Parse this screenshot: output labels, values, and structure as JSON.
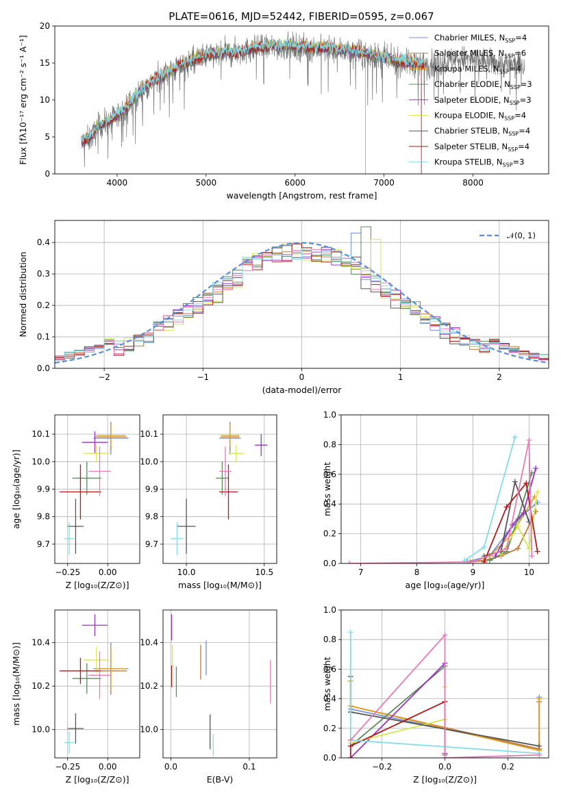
{
  "figure": {
    "title": "PLATE=0616, MJD=52442, FIBERID=0595, z=0.067"
  },
  "legend": {
    "models": [
      {
        "name": "Chabrier MILES",
        "nssp": "4",
        "color": "#6e8fd0"
      },
      {
        "name": "Salpeter MILES",
        "nssp": "6",
        "color": "#c4783a"
      },
      {
        "name": "Kroupa MILES",
        "nssp": "4",
        "color": "#e0a020"
      },
      {
        "name": "Chabrier ELODIE",
        "nssp": "3",
        "color": "#5b8a5b"
      },
      {
        "name": "Salpeter ELODIE",
        "nssp": "3",
        "color": "#9b30c0"
      },
      {
        "name": "Kroupa ELODIE",
        "nssp": "4",
        "color": "#d8e84a"
      },
      {
        "name": "Chabrier STELIB",
        "nssp": "4",
        "color": "#555555"
      },
      {
        "name": "Salpeter STELIB",
        "nssp": "4",
        "color": "#b01818"
      },
      {
        "name": "Kroupa STELIB",
        "nssp": "3",
        "color": "#80dde8"
      }
    ],
    "extra_colors": [
      "#e87ab8"
    ],
    "nssp_prefix": "N",
    "nssp_sub": "SSP"
  },
  "chart_data": [
    {
      "id": "spectrum",
      "type": "line",
      "xlabel": "wavelength [Angstrom, rest frame]",
      "ylabel": "Flux [fλ10⁻¹⁷ erg cm⁻² s⁻¹ A⁻¹]",
      "xlim": [
        3300,
        8850
      ],
      "ylim": [
        0,
        20
      ],
      "xticks": [
        4000,
        5000,
        6000,
        7000,
        8000
      ],
      "yticks": [
        0,
        5,
        10,
        15,
        20
      ],
      "continuum": {
        "x": [
          3600,
          3700,
          3800,
          3900,
          4000,
          4100,
          4200,
          4300,
          4400,
          4500,
          4600,
          4800,
          5000,
          5200,
          5400,
          5600,
          5800,
          6000,
          6200,
          6400,
          6600,
          6800,
          7000,
          7200,
          7400,
          7600,
          7800,
          8000,
          8200,
          8400
        ],
        "y": [
          4.2,
          4.8,
          6.5,
          7.0,
          7.8,
          8.8,
          10.3,
          11.5,
          12.5,
          13.2,
          13.8,
          15.0,
          16.0,
          16.3,
          16.5,
          17.0,
          17.2,
          17.2,
          17.0,
          16.8,
          16.6,
          16.2,
          15.5,
          15.1,
          14.8,
          14.8,
          15.5,
          15.5,
          15.1,
          14.7
        ]
      },
      "data_range": [
        3600,
        8580
      ],
      "model_range": [
        3600,
        7450
      ],
      "dropouts": [
        {
          "x": 6790,
          "model": "Salpeter MILES"
        },
        {
          "x": 7420,
          "model": "Salpeter STELIB"
        }
      ]
    },
    {
      "id": "residuals",
      "type": "histogram",
      "xlabel": "(data-model)/error",
      "ylabel": "Normed distribution",
      "xlim": [
        -2.5,
        2.5
      ],
      "ylim": [
        0,
        0.47
      ],
      "xticks": [
        -2,
        -1,
        0,
        1,
        2
      ],
      "yticks": [
        0.0,
        0.1,
        0.2,
        0.3,
        0.4
      ],
      "bin_width": 0.1,
      "reference_label": "𝒩(0, 1)",
      "reference_color": "#5b8ad8",
      "peak_values": {
        "Chabrier ELODIE": 0.45,
        "Chabrier MILES": 0.43,
        "Kroupa ELODIE": 0.41
      }
    },
    {
      "id": "age-vs-Z",
      "type": "errorbar",
      "xlabel": "Z [log₁₀(Z/Z⊙)]",
      "ylabel": "age  [log₁₀(age/yr)]",
      "xlim": [
        -0.33,
        0.2
      ],
      "ylim": [
        9.63,
        10.17
      ],
      "xticks": [
        -0.25,
        0.0
      ],
      "yticks": [
        9.7,
        9.8,
        9.9,
        10.0,
        10.1
      ],
      "points": [
        {
          "x": 0.02,
          "y": 10.085,
          "xerr": 0.11,
          "yerr": 0.06,
          "c": 0
        },
        {
          "x": 0.02,
          "y": 10.09,
          "xerr": 0.1,
          "yerr": 0.05,
          "c": 1
        },
        {
          "x": 0.02,
          "y": 10.095,
          "xerr": 0.09,
          "yerr": 0.04,
          "c": 2
        },
        {
          "x": -0.13,
          "y": 9.94,
          "xerr": 0.09,
          "yerr": 0.06,
          "c": 3
        },
        {
          "x": -0.08,
          "y": 10.07,
          "xerr": 0.08,
          "yerr": 0.04,
          "c": 4
        },
        {
          "x": -0.07,
          "y": 10.03,
          "xerr": 0.08,
          "yerr": 0.03,
          "c": 5
        },
        {
          "x": -0.2,
          "y": 9.765,
          "xerr": 0.05,
          "yerr": 0.1,
          "c": 6
        },
        {
          "x": -0.17,
          "y": 9.89,
          "xerr": 0.13,
          "yerr": 0.1,
          "c": 7
        },
        {
          "x": -0.24,
          "y": 9.72,
          "xerr": 0.03,
          "yerr": 0.06,
          "c": 8
        },
        {
          "x": -0.05,
          "y": 9.965,
          "xerr": 0.07,
          "yerr": 0.09,
          "c": 9
        }
      ]
    },
    {
      "id": "age-vs-mass",
      "type": "errorbar",
      "xlabel": "mass [log₁₀(M/M⊙)]",
      "ylabel": "",
      "xlim": [
        9.85,
        10.58
      ],
      "ylim": [
        9.63,
        10.17
      ],
      "xticks": [
        10.0,
        10.5
      ],
      "yticks": [
        9.7,
        9.8,
        9.9,
        10.0,
        10.1
      ],
      "points": [
        {
          "x": 10.28,
          "y": 10.085,
          "xerr": 0.07,
          "yerr": 0.06,
          "c": 0
        },
        {
          "x": 10.28,
          "y": 10.09,
          "xerr": 0.06,
          "yerr": 0.05,
          "c": 1
        },
        {
          "x": 10.28,
          "y": 10.095,
          "xerr": 0.06,
          "yerr": 0.04,
          "c": 2
        },
        {
          "x": 10.23,
          "y": 9.94,
          "xerr": 0.04,
          "yerr": 0.06,
          "c": 3
        },
        {
          "x": 10.48,
          "y": 10.06,
          "xerr": 0.04,
          "yerr": 0.04,
          "c": 4
        },
        {
          "x": 10.32,
          "y": 10.03,
          "xerr": 0.05,
          "yerr": 0.03,
          "c": 5
        },
        {
          "x": 10.0,
          "y": 9.765,
          "xerr": 0.06,
          "yerr": 0.1,
          "c": 6
        },
        {
          "x": 10.27,
          "y": 9.89,
          "xerr": 0.06,
          "yerr": 0.1,
          "c": 7
        },
        {
          "x": 9.94,
          "y": 9.72,
          "xerr": 0.04,
          "yerr": 0.06,
          "c": 8
        },
        {
          "x": 10.25,
          "y": 9.965,
          "xerr": 0.04,
          "yerr": 0.09,
          "c": 9
        }
      ]
    },
    {
      "id": "massweight-vs-age",
      "type": "line",
      "xlabel": "age  [log₁₀(age/yr)]",
      "ylabel": "mass weight",
      "xlim": [
        6.65,
        10.35
      ],
      "ylim": [
        0,
        1
      ],
      "xticks": [
        7,
        8,
        9,
        10
      ],
      "yticks": [
        0.0,
        0.2,
        0.4,
        0.6,
        0.8,
        1.0
      ],
      "series": [
        {
          "c": 0,
          "x": [
            8.9,
            9.3,
            9.6,
            9.9,
            10.15
          ],
          "y": [
            0.01,
            0.05,
            0.2,
            0.33,
            0.41
          ]
        },
        {
          "c": 1,
          "x": [
            8.95,
            9.2,
            9.5,
            9.8,
            10.12
          ],
          "y": [
            0.01,
            0.02,
            0.05,
            0.1,
            0.35
          ]
        },
        {
          "c": 2,
          "x": [
            9.0,
            9.3,
            9.7,
            10.1
          ],
          "y": [
            0.01,
            0.05,
            0.2,
            0.45
          ]
        },
        {
          "c": 3,
          "x": [
            9.3,
            9.6,
            9.8,
            10.05
          ],
          "y": [
            0.02,
            0.08,
            0.3,
            0.61
          ]
        },
        {
          "c": 4,
          "x": [
            9.4,
            9.7,
            9.9,
            10.12
          ],
          "y": [
            0.05,
            0.26,
            0.34,
            0.64
          ]
        },
        {
          "c": 5,
          "x": [
            9.5,
            9.8,
            10.0,
            10.15
          ],
          "y": [
            0.06,
            0.25,
            0.1,
            0.48
          ]
        },
        {
          "c": 6,
          "x": [
            9.2,
            9.5,
            9.75,
            10.0
          ],
          "y": [
            0.05,
            0.08,
            0.55,
            0.28
          ]
        },
        {
          "c": 7,
          "x": [
            9.2,
            9.6,
            9.95,
            10.15
          ],
          "y": [
            0.01,
            0.38,
            0.54,
            0.08
          ]
        },
        {
          "c": 8,
          "x": [
            8.85,
            9.2,
            9.75
          ],
          "y": [
            0.02,
            0.11,
            0.85
          ]
        },
        {
          "c": 9,
          "x": [
            6.8,
            9.0,
            9.6,
            10.0,
            10.05
          ],
          "y": [
            0.0,
            0.01,
            0.1,
            0.83,
            0.05
          ]
        }
      ]
    },
    {
      "id": "mass-vs-Z",
      "type": "errorbar",
      "xlabel": "Z [log₁₀(Z/Z⊙)]",
      "ylabel": "mass [log₁₀(M/M⊙)]",
      "xlim": [
        -0.33,
        0.2
      ],
      "ylim": [
        9.87,
        10.55
      ],
      "xticks": [
        -0.25,
        0.0
      ],
      "yticks": [
        10.0,
        10.2,
        10.4
      ],
      "points": [
        {
          "x": 0.02,
          "y": 10.28,
          "xerr": 0.11,
          "yerr": 0.12,
          "c": 0
        },
        {
          "x": 0.02,
          "y": 10.27,
          "xerr": 0.1,
          "yerr": 0.1,
          "c": 1
        },
        {
          "x": 0.02,
          "y": 10.28,
          "xerr": 0.09,
          "yerr": 0.1,
          "c": 2
        },
        {
          "x": -0.13,
          "y": 10.235,
          "xerr": 0.09,
          "yerr": 0.07,
          "c": 3
        },
        {
          "x": -0.08,
          "y": 10.48,
          "xerr": 0.08,
          "yerr": 0.05,
          "c": 4
        },
        {
          "x": -0.07,
          "y": 10.32,
          "xerr": 0.08,
          "yerr": 0.06,
          "c": 5
        },
        {
          "x": -0.2,
          "y": 10.005,
          "xerr": 0.05,
          "yerr": 0.07,
          "c": 6
        },
        {
          "x": -0.17,
          "y": 10.27,
          "xerr": 0.13,
          "yerr": 0.06,
          "c": 7
        },
        {
          "x": -0.24,
          "y": 9.94,
          "xerr": 0.03,
          "yerr": 0.05,
          "c": 8
        },
        {
          "x": -0.05,
          "y": 10.25,
          "xerr": 0.07,
          "yerr": 0.11,
          "c": 9
        }
      ]
    },
    {
      "id": "mass-vs-ebv",
      "type": "errorbar",
      "xlabel": "E(B-V)",
      "ylabel": "",
      "xlim": [
        -0.01,
        0.135
      ],
      "ylim": [
        9.87,
        10.55
      ],
      "xticks": [
        0.0,
        0.1
      ],
      "yticks": [
        10.0,
        10.2,
        10.4
      ],
      "points": [
        {
          "x": 0.045,
          "y": 10.33,
          "xerr": 0,
          "yerr": 0.08,
          "c": 0
        },
        {
          "x": 0.038,
          "y": 10.31,
          "xerr": 0,
          "yerr": 0.08,
          "c": 1
        },
        {
          "x": 0.001,
          "y": 10.47,
          "xerr": 0,
          "yerr": 0.06,
          "c": 4
        },
        {
          "x": 0.002,
          "y": 10.34,
          "xerr": 0,
          "yerr": 0.05,
          "c": 5
        },
        {
          "x": 0.007,
          "y": 10.22,
          "xerr": 0,
          "yerr": 0.07,
          "c": 3
        },
        {
          "x": 0.05,
          "y": 9.99,
          "xerr": 0,
          "yerr": 0.08,
          "c": 6
        },
        {
          "x": 0.001,
          "y": 10.245,
          "xerr": 0,
          "yerr": 0.05,
          "c": 7
        },
        {
          "x": 0.054,
          "y": 9.93,
          "xerr": 0,
          "yerr": 0.05,
          "c": 8
        },
        {
          "x": 0.127,
          "y": 10.22,
          "xerr": 0,
          "yerr": 0.1,
          "c": 9
        }
      ]
    },
    {
      "id": "massweight-vs-Z",
      "type": "line",
      "xlabel": "Z [log₁₀(Z/Z⊙)]",
      "ylabel": "mass weight",
      "xlim": [
        -0.33,
        0.33
      ],
      "ylim": [
        0,
        1
      ],
      "xticks": [
        -0.2,
        0.0,
        0.2
      ],
      "yticks": [
        0.0,
        0.2,
        0.4,
        0.6,
        0.8,
        1.0
      ],
      "series": [
        {
          "c": 0,
          "x": [
            -0.3,
            -0.3,
            0.3,
            0.3
          ],
          "y": [
            0.35,
            0.33,
            0.06,
            0.41
          ]
        },
        {
          "c": 1,
          "x": [
            -0.3,
            0.3,
            0.3
          ],
          "y": [
            0.35,
            0.06,
            0.38
          ]
        },
        {
          "c": 2,
          "x": [
            -0.3,
            -0.3,
            0.3,
            0.3
          ],
          "y": [
            0.52,
            0.35,
            0.05,
            0.4
          ]
        },
        {
          "c": 3,
          "x": [
            -0.3,
            0.0,
            0.0
          ],
          "y": [
            0.08,
            0.62,
            0.02
          ]
        },
        {
          "c": 4,
          "x": [
            -0.3,
            0.0,
            0.0
          ],
          "y": [
            0.0,
            0.64,
            0.03
          ]
        },
        {
          "c": 5,
          "x": [
            -0.3,
            0.0,
            0.0
          ],
          "y": [
            0.1,
            0.26,
            0.48
          ]
        },
        {
          "c": 6,
          "x": [
            -0.3,
            -0.3,
            0.3
          ],
          "y": [
            0.55,
            0.31,
            0.08
          ]
        },
        {
          "c": 7,
          "x": [
            -0.3,
            -0.3,
            0.0,
            0.0
          ],
          "y": [
            0.0,
            0.08,
            0.38,
            0.0
          ]
        },
        {
          "c": 8,
          "x": [
            -0.3,
            -0.3,
            0.3
          ],
          "y": [
            0.85,
            0.12,
            0.03
          ]
        },
        {
          "c": 9,
          "x": [
            -0.3,
            0.0,
            0.0,
            0.3
          ],
          "y": [
            0.12,
            0.83,
            0.0,
            0.02
          ]
        }
      ]
    }
  ]
}
